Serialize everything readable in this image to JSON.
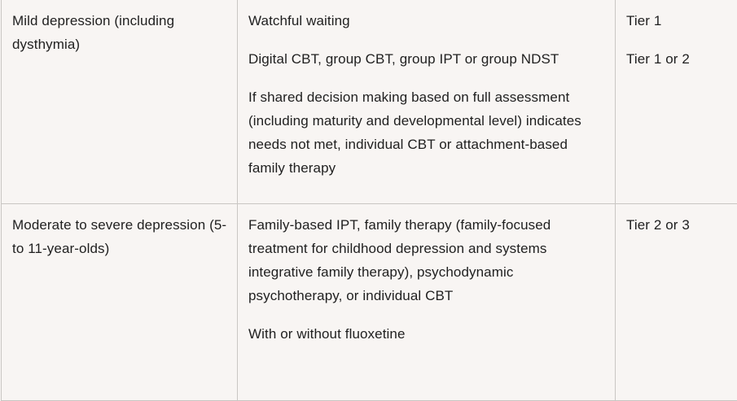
{
  "rows": [
    {
      "condition": "Mild depression (including dysthymia)",
      "treatments": [
        "Watchful waiting",
        "Digital CBT, group CBT, group IPT or group NDST",
        "If shared decision making based on full assessment (including maturity and developmental level) indicates needs not met, individual CBT or attachment-based family therapy"
      ],
      "tiers": [
        "Tier 1",
        "Tier 1 or 2"
      ]
    },
    {
      "condition": "Moderate to severe depression (5- to 11-year-olds)",
      "treatments": [
        "Family-based IPT, family therapy (family-focused treatment for childhood depression and systems integrative family therapy), psychodynamic psychotherapy, or individual CBT",
        "With or without fluoxetine"
      ],
      "tiers": [
        "Tier 2 or 3"
      ]
    }
  ]
}
